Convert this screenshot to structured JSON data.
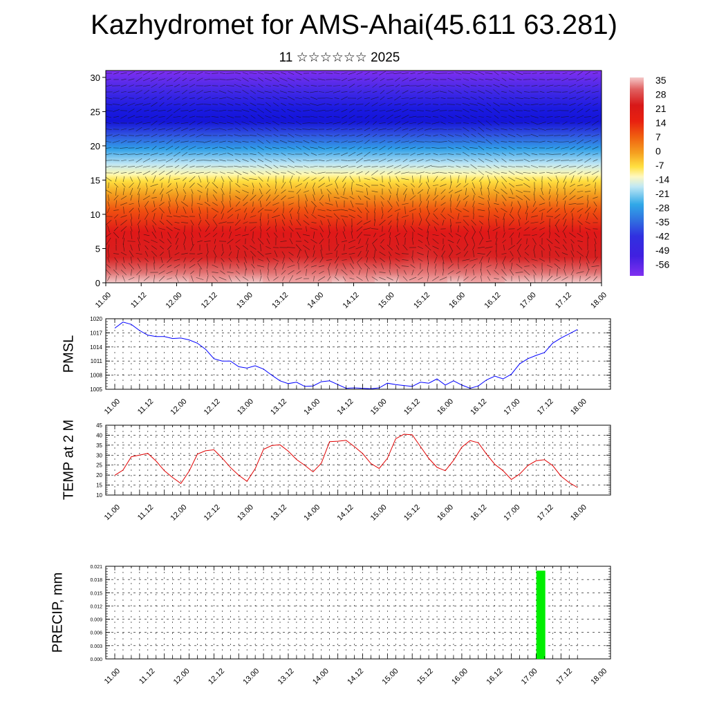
{
  "title": "Kazhydromet for AMS-Ahai(45.611 63.281)",
  "subtitle": "11 ☆☆☆☆☆☆ 2025",
  "time_labels": [
    "11.00",
    "11.12",
    "12.00",
    "12.12",
    "13.00",
    "13.12",
    "14.00",
    "14.12",
    "15.00",
    "15.12",
    "16.00",
    "16.12",
    "17.00",
    "17.12",
    "18.00"
  ],
  "colors": {
    "pmsl_line": "#0000ff",
    "temp_line": "#e00000",
    "precip_bar": "#00ee00"
  },
  "chart_data": [
    {
      "type": "heatmap",
      "name": "upper-air-cross-section",
      "xlabel": "",
      "ylabel": "",
      "x_labels_ref": "time_labels",
      "ylim": [
        0,
        31
      ],
      "yticks": [
        "0",
        "5",
        "10",
        "15",
        "20",
        "25",
        "30"
      ],
      "colorbar_labels": [
        "35",
        "28",
        "21",
        "14",
        "7",
        "0",
        "-7",
        "-14",
        "-21",
        "-28",
        "-35",
        "-42",
        "-49",
        "-56"
      ],
      "colorbar_range": [
        -60,
        38
      ],
      "overlay": "wind vectors"
    },
    {
      "type": "line",
      "ylabel": "PMSL",
      "ylim": [
        1005,
        1020
      ],
      "yticks": [
        "1005",
        "1008",
        "1011",
        "1014",
        "1017",
        "1020"
      ],
      "x_labels_ref": "time_labels",
      "series": [
        {
          "values": [
            1018.0,
            1019.3,
            1018.8,
            1017.5,
            1016.5,
            1016.2,
            1016.2,
            1015.8,
            1015.9,
            1015.5,
            1014.8,
            1013.5,
            1011.5,
            1011.0,
            1011.0,
            1009.8,
            1009.5,
            1010.0,
            1009.3,
            1008.0,
            1006.8,
            1006.2,
            1006.5,
            1005.6,
            1005.7,
            1006.6,
            1006.8,
            1006.0,
            1005.2,
            1005.3,
            1005.2,
            1005.1,
            1005.3,
            1006.3,
            1006.0,
            1005.8,
            1005.6,
            1006.5,
            1006.3,
            1007.2,
            1005.9,
            1006.8,
            1005.9,
            1005.2,
            1005.7,
            1007.0,
            1007.8,
            1007.2,
            1008.2,
            1010.4,
            1011.5,
            1012.2,
            1012.8,
            1014.8,
            1015.9,
            1016.8,
            1017.7
          ]
        }
      ]
    },
    {
      "type": "line",
      "ylabel": "TEMP at 2 M",
      "ylim": [
        10,
        45
      ],
      "yticks": [
        "10",
        "15",
        "20",
        "25",
        "30",
        "35",
        "40",
        "45"
      ],
      "x_labels_ref": "time_labels",
      "series": [
        {
          "values": [
            19.9,
            22.5,
            29.2,
            30.0,
            30.9,
            27.0,
            22.2,
            18.8,
            15.8,
            22.0,
            30.5,
            32.2,
            32.7,
            28.5,
            23.8,
            19.9,
            16.9,
            23.2,
            32.9,
            34.8,
            35.2,
            32.0,
            27.8,
            24.9,
            21.6,
            26.0,
            36.8,
            37.0,
            37.4,
            34.3,
            30.8,
            25.8,
            23.3,
            28.4,
            38.2,
            40.5,
            40.2,
            34.3,
            28.4,
            23.9,
            22.2,
            27.4,
            34.0,
            37.3,
            36.2,
            30.4,
            25.4,
            22.2,
            17.8,
            20.5,
            24.8,
            27.2,
            27.7,
            24.8,
            19.5,
            16.2,
            13.8
          ]
        }
      ]
    },
    {
      "type": "bar",
      "ylabel": "PRECIP, mm",
      "ylim": [
        0,
        0.021
      ],
      "yticks": [
        "0.000",
        "0.003",
        "0.006",
        "0.009",
        "0.012",
        "0.015",
        "0.018",
        "0.021"
      ],
      "x_labels_ref": "time_labels",
      "bars": [
        {
          "x": "17.03",
          "value": 0.02
        }
      ]
    }
  ]
}
